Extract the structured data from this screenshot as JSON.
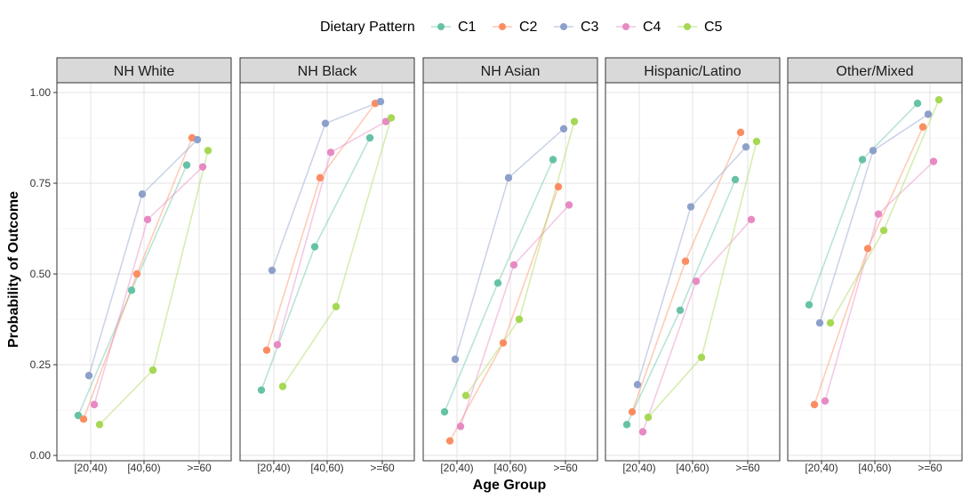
{
  "chart_data": {
    "type": "line",
    "facet_by": "group",
    "x_categories": [
      "[20,40)",
      "[40,60)",
      ">=60"
    ],
    "xlabel": "Age Group",
    "ylabel": "Probability of Outcome",
    "ylim": [
      0,
      1.05
    ],
    "y_ticks": [
      "0.00",
      "0.25",
      "0.50",
      "0.75",
      "1.00"
    ],
    "y_tick_values": [
      0,
      0.25,
      0.5,
      0.75,
      1.0
    ],
    "grid": true,
    "legend": {
      "title": "Dietary Pattern",
      "placement": "top",
      "entries": [
        {
          "name": "C1",
          "color": "#66C2A5"
        },
        {
          "name": "C2",
          "color": "#FC8D62"
        },
        {
          "name": "C3",
          "color": "#8DA0CB"
        },
        {
          "name": "C4",
          "color": "#E78AC3"
        },
        {
          "name": "C5",
          "color": "#A6D854"
        }
      ]
    },
    "facets": [
      {
        "title": "NH White",
        "series": {
          "C1": [
            0.11,
            0.455,
            0.8
          ],
          "C2": [
            0.1,
            0.5,
            0.875
          ],
          "C3": [
            0.22,
            0.72,
            0.87
          ],
          "C4": [
            0.14,
            0.65,
            0.795
          ],
          "C5": [
            0.085,
            0.235,
            0.84
          ]
        }
      },
      {
        "title": "NH Black",
        "series": {
          "C1": [
            0.18,
            0.575,
            0.875
          ],
          "C2": [
            0.29,
            0.765,
            0.97
          ],
          "C3": [
            0.51,
            0.915,
            0.975
          ],
          "C4": [
            0.305,
            0.835,
            0.92
          ],
          "C5": [
            0.19,
            0.41,
            0.93
          ]
        }
      },
      {
        "title": "NH Asian",
        "series": {
          "C1": [
            0.12,
            0.475,
            0.815
          ],
          "C2": [
            0.04,
            0.31,
            0.74
          ],
          "C3": [
            0.265,
            0.765,
            0.9
          ],
          "C4": [
            0.08,
            0.525,
            0.69
          ],
          "C5": [
            0.165,
            0.375,
            0.92
          ]
        }
      },
      {
        "title": "Hispanic/Latino",
        "series": {
          "C1": [
            0.085,
            0.4,
            0.76
          ],
          "C2": [
            0.12,
            0.535,
            0.89
          ],
          "C3": [
            0.195,
            0.685,
            0.85
          ],
          "C4": [
            0.065,
            0.48,
            0.65
          ],
          "C5": [
            0.105,
            0.27,
            0.865
          ]
        }
      },
      {
        "title": "Other/Mixed",
        "series": {
          "C1": [
            0.415,
            0.815,
            0.97
          ],
          "C2": [
            0.14,
            0.57,
            0.905
          ],
          "C3": [
            0.365,
            0.84,
            0.94
          ],
          "C4": [
            0.15,
            0.665,
            0.81
          ],
          "C5": [
            0.365,
            0.62,
            0.98
          ]
        }
      }
    ]
  }
}
